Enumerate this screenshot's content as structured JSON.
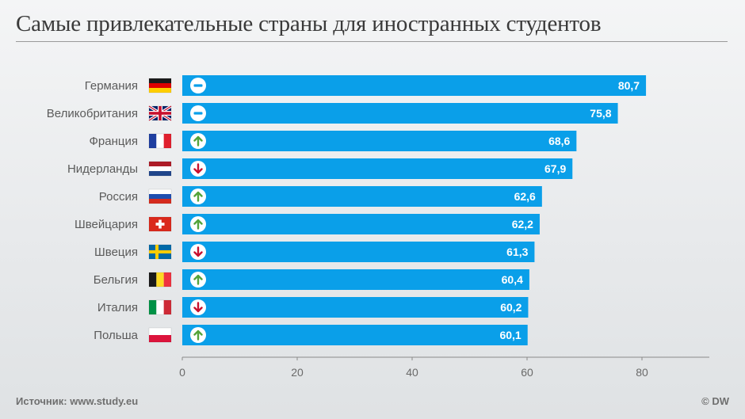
{
  "title": "Самые привлекательные страны для иностранных студентов",
  "footer": {
    "source": "Источник: www.study.eu",
    "credit": "© DW"
  },
  "colors": {
    "bar": "#0a9fe9",
    "up": "#54a43b",
    "down": "#c8102e",
    "neutral": "#0a9fe9",
    "label": "#5b5b5b",
    "axis": "#8a8a8a"
  },
  "chart_data": {
    "type": "bar",
    "orientation": "horizontal",
    "title": "Самые привлекательные страны для иностранных студентов",
    "xlabel": "",
    "ylabel": "",
    "xlim": [
      0,
      90
    ],
    "xticks": [
      0,
      20,
      40,
      60,
      80
    ],
    "categories": [
      "Германия",
      "Великобритания",
      "Франция",
      "Нидерланды",
      "Россия",
      "Швейцария",
      "Швеция",
      "Бельгия",
      "Италия",
      "Польша"
    ],
    "values": [
      80.7,
      75.8,
      68.6,
      67.9,
      62.6,
      62.2,
      61.3,
      60.4,
      60.2,
      60.1
    ],
    "value_labels": [
      "80,7",
      "75,8",
      "68,6",
      "67,9",
      "62,6",
      "62,2",
      "61,3",
      "60,4",
      "60,2",
      "60,1"
    ],
    "trend": [
      "same",
      "same",
      "up",
      "down",
      "up",
      "up",
      "down",
      "up",
      "down",
      "up"
    ],
    "flags": [
      "de-flag-icon",
      "gb-flag-icon",
      "fr-flag-icon",
      "nl-flag-icon",
      "ru-flag-icon",
      "ch-flag-icon",
      "se-flag-icon",
      "be-flag-icon",
      "it-flag-icon",
      "pl-flag-icon"
    ]
  }
}
